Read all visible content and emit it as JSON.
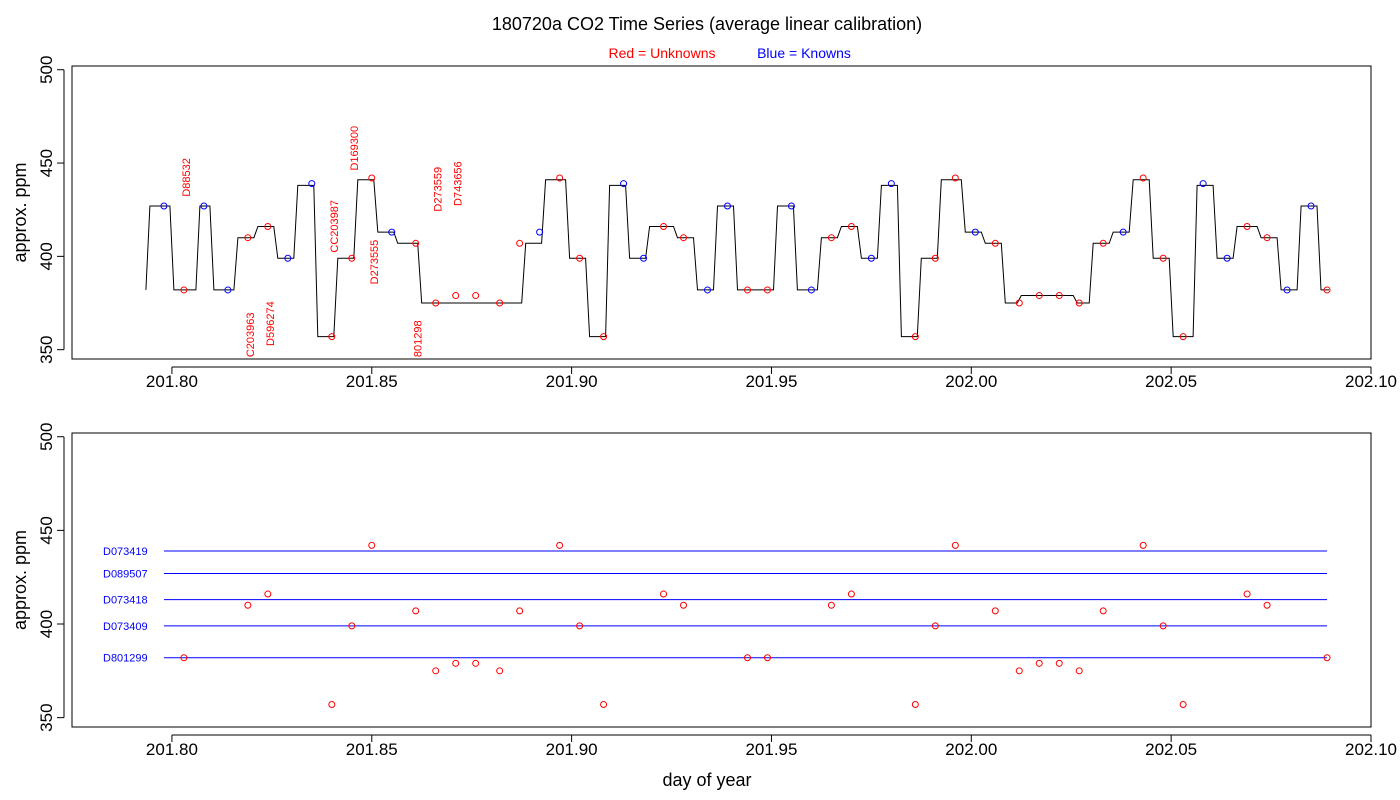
{
  "chart_data": {
    "title": "180720a   CO2 Time Series (average linear calibration)",
    "legend": {
      "red_label": "Red = Unknowns",
      "blue_label": "Blue = Knowns",
      "red_color": "#ff0000",
      "blue_color": "#0000ff"
    },
    "xlabel": "day of year",
    "xlim": [
      201.775,
      202.1
    ],
    "ylim": [
      345,
      502
    ],
    "xticks": [
      201.8,
      201.85,
      201.9,
      201.95,
      202.0,
      202.05,
      202.1
    ],
    "xtick_labels": [
      "201.80",
      "201.85",
      "201.90",
      "201.95",
      "202.00",
      "202.05",
      "202.10"
    ],
    "yticks": [
      350,
      400,
      450,
      500
    ],
    "ytick_labels": [
      "350",
      "400",
      "450",
      "500"
    ],
    "panels": [
      {
        "type": "line",
        "ylabel": "approx. ppm",
        "trace": [
          [
            201.7935,
            382
          ],
          [
            201.7945,
            427
          ],
          [
            201.7995,
            427
          ],
          [
            201.8005,
            382
          ],
          [
            201.806,
            382
          ],
          [
            201.807,
            427
          ],
          [
            201.8095,
            427
          ],
          [
            201.8105,
            382
          ],
          [
            201.8155,
            382
          ],
          [
            201.8165,
            410
          ],
          [
            201.8205,
            410
          ],
          [
            201.8215,
            416
          ],
          [
            201.8255,
            416
          ],
          [
            201.8265,
            399
          ],
          [
            201.8305,
            399
          ],
          [
            201.8315,
            438
          ],
          [
            201.8355,
            438
          ],
          [
            201.8365,
            357
          ],
          [
            201.8405,
            357
          ],
          [
            201.8415,
            399
          ],
          [
            201.8455,
            399
          ],
          [
            201.8465,
            441
          ],
          [
            201.8505,
            441
          ],
          [
            201.8515,
            413
          ],
          [
            201.8555,
            413
          ],
          [
            201.8565,
            407
          ],
          [
            201.8615,
            407
          ],
          [
            201.8625,
            375
          ],
          [
            201.8875,
            375
          ],
          [
            201.8885,
            407
          ],
          [
            201.8925,
            407
          ],
          [
            201.8935,
            441
          ],
          [
            201.8985,
            441
          ],
          [
            201.8995,
            399
          ],
          [
            201.9035,
            399
          ],
          [
            201.9045,
            357
          ],
          [
            201.9085,
            357
          ],
          [
            201.9095,
            438
          ],
          [
            201.9135,
            438
          ],
          [
            201.9145,
            399
          ],
          [
            201.9185,
            399
          ],
          [
            201.9195,
            416
          ],
          [
            201.9255,
            416
          ],
          [
            201.9265,
            410
          ],
          [
            201.9305,
            410
          ],
          [
            201.9315,
            382
          ],
          [
            201.9355,
            382
          ],
          [
            201.9365,
            427
          ],
          [
            201.9405,
            427
          ],
          [
            201.9415,
            382
          ],
          [
            201.9505,
            382
          ],
          [
            201.9515,
            427
          ],
          [
            201.9555,
            427
          ],
          [
            201.9565,
            382
          ],
          [
            201.9615,
            382
          ],
          [
            201.9625,
            410
          ],
          [
            201.9665,
            410
          ],
          [
            201.9675,
            416
          ],
          [
            201.9715,
            416
          ],
          [
            201.9725,
            399
          ],
          [
            201.9765,
            399
          ],
          [
            201.9775,
            438
          ],
          [
            201.9815,
            438
          ],
          [
            201.9825,
            357
          ],
          [
            201.9865,
            357
          ],
          [
            201.9875,
            399
          ],
          [
            201.9915,
            399
          ],
          [
            201.9925,
            441
          ],
          [
            201.9975,
            441
          ],
          [
            201.9985,
            413
          ],
          [
            202.0025,
            413
          ],
          [
            202.0035,
            407
          ],
          [
            202.0075,
            407
          ],
          [
            202.0085,
            375
          ],
          [
            202.0115,
            375
          ],
          [
            202.0125,
            379
          ],
          [
            202.0255,
            379
          ],
          [
            202.0265,
            375
          ],
          [
            202.0295,
            375
          ],
          [
            202.0305,
            407
          ],
          [
            202.0345,
            407
          ],
          [
            202.0355,
            413
          ],
          [
            202.0395,
            413
          ],
          [
            202.0405,
            441
          ],
          [
            202.0445,
            441
          ],
          [
            202.0455,
            399
          ],
          [
            202.0495,
            399
          ],
          [
            202.0505,
            357
          ],
          [
            202.0555,
            357
          ],
          [
            202.0565,
            438
          ],
          [
            202.0605,
            438
          ],
          [
            202.0615,
            399
          ],
          [
            202.0655,
            399
          ],
          [
            202.0665,
            416
          ],
          [
            202.0715,
            416
          ],
          [
            202.0725,
            410
          ],
          [
            202.0765,
            410
          ],
          [
            202.0775,
            382
          ],
          [
            202.0815,
            382
          ],
          [
            202.0825,
            427
          ],
          [
            202.0865,
            427
          ],
          [
            202.0875,
            382
          ],
          [
            202.0895,
            382
          ]
        ],
        "unknowns": [
          [
            201.803,
            382
          ],
          [
            201.819,
            410
          ],
          [
            201.824,
            416
          ],
          [
            201.84,
            357
          ],
          [
            201.845,
            399
          ],
          [
            201.85,
            442
          ],
          [
            201.861,
            407
          ],
          [
            201.866,
            375
          ],
          [
            201.871,
            379
          ],
          [
            201.876,
            379
          ],
          [
            201.882,
            375
          ],
          [
            201.887,
            407
          ],
          [
            201.897,
            442
          ],
          [
            201.902,
            399
          ],
          [
            201.908,
            357
          ],
          [
            201.923,
            416
          ],
          [
            201.928,
            410
          ],
          [
            201.944,
            382
          ],
          [
            201.949,
            382
          ],
          [
            201.965,
            410
          ],
          [
            201.97,
            416
          ],
          [
            201.986,
            357
          ],
          [
            201.991,
            399
          ],
          [
            201.996,
            442
          ],
          [
            202.006,
            407
          ],
          [
            202.012,
            375
          ],
          [
            202.017,
            379
          ],
          [
            202.022,
            379
          ],
          [
            202.027,
            375
          ],
          [
            202.033,
            407
          ],
          [
            202.043,
            442
          ],
          [
            202.048,
            399
          ],
          [
            202.053,
            357
          ],
          [
            202.069,
            416
          ],
          [
            202.074,
            410
          ],
          [
            202.089,
            382
          ]
        ],
        "knowns": [
          [
            201.798,
            427
          ],
          [
            201.808,
            427
          ],
          [
            201.814,
            382
          ],
          [
            201.829,
            399
          ],
          [
            201.835,
            439
          ],
          [
            201.855,
            413
          ],
          [
            201.892,
            413
          ],
          [
            201.913,
            439
          ],
          [
            201.918,
            399
          ],
          [
            201.934,
            382
          ],
          [
            201.939,
            427
          ],
          [
            201.955,
            427
          ],
          [
            201.96,
            382
          ],
          [
            201.975,
            399
          ],
          [
            201.98,
            439
          ],
          [
            202.001,
            413
          ],
          [
            202.038,
            413
          ],
          [
            202.058,
            439
          ],
          [
            202.064,
            399
          ],
          [
            202.079,
            382
          ],
          [
            202.085,
            427
          ]
        ],
        "annotations": [
          {
            "text": "D88532",
            "x": 201.8035,
            "y": 432
          },
          {
            "text": "C203963",
            "x": 201.8195,
            "y": 346
          },
          {
            "text": "D596274",
            "x": 201.8245,
            "y": 352
          },
          {
            "text": "CC203987",
            "x": 201.8405,
            "y": 402
          },
          {
            "text": "D169300",
            "x": 201.8455,
            "y": 446
          },
          {
            "text": "D273555",
            "x": 201.8505,
            "y": 385
          },
          {
            "text": "801298",
            "x": 201.8615,
            "y": 346
          },
          {
            "text": "D273559",
            "x": 201.8665,
            "y": 424
          },
          {
            "text": "D743656",
            "x": 201.8715,
            "y": 427
          }
        ]
      },
      {
        "type": "scatter",
        "ylabel": "approx. ppm",
        "reference_lines": [
          {
            "name": "D073419",
            "y": 439
          },
          {
            "name": "D089507",
            "y": 427
          },
          {
            "name": "D073418",
            "y": 413
          },
          {
            "name": "D073409",
            "y": 399
          },
          {
            "name": "D801299",
            "y": 382
          }
        ],
        "reference_x_range": [
          201.798,
          202.089
        ],
        "unknowns": [
          [
            201.803,
            382
          ],
          [
            201.819,
            410
          ],
          [
            201.824,
            416
          ],
          [
            201.84,
            357
          ],
          [
            201.845,
            399
          ],
          [
            201.85,
            442
          ],
          [
            201.861,
            407
          ],
          [
            201.866,
            375
          ],
          [
            201.871,
            379
          ],
          [
            201.876,
            379
          ],
          [
            201.882,
            375
          ],
          [
            201.887,
            407
          ],
          [
            201.897,
            442
          ],
          [
            201.902,
            399
          ],
          [
            201.908,
            357
          ],
          [
            201.923,
            416
          ],
          [
            201.928,
            410
          ],
          [
            201.944,
            382
          ],
          [
            201.949,
            382
          ],
          [
            201.965,
            410
          ],
          [
            201.97,
            416
          ],
          [
            201.986,
            357
          ],
          [
            201.991,
            399
          ],
          [
            201.996,
            442
          ],
          [
            202.006,
            407
          ],
          [
            202.012,
            375
          ],
          [
            202.017,
            379
          ],
          [
            202.022,
            379
          ],
          [
            202.027,
            375
          ],
          [
            202.033,
            407
          ],
          [
            202.043,
            442
          ],
          [
            202.048,
            399
          ],
          [
            202.053,
            357
          ],
          [
            202.069,
            416
          ],
          [
            202.074,
            410
          ],
          [
            202.089,
            382
          ]
        ]
      }
    ]
  }
}
